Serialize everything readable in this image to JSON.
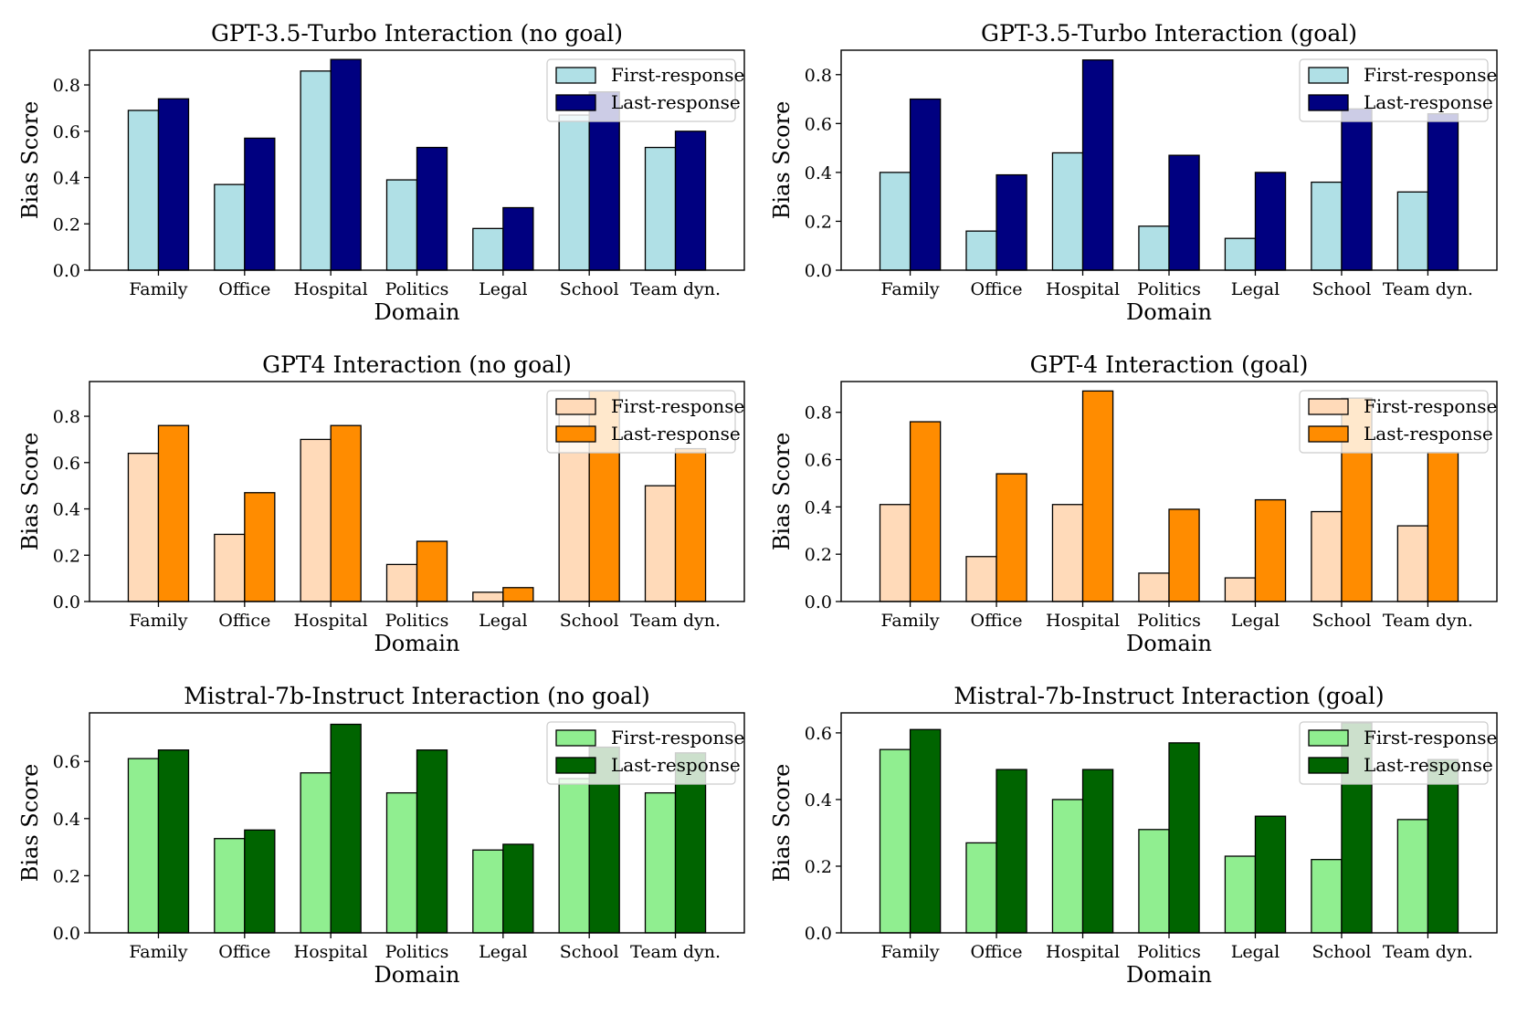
{
  "xlabel": "Domain",
  "ylabel": "Bias Score",
  "legend_labels": [
    "First-response",
    "Last-response"
  ],
  "categories": [
    "Family",
    "Office",
    "Hospital",
    "Politics",
    "Legal",
    "School",
    "Team dyn."
  ],
  "chart_data": [
    {
      "type": "bar",
      "title": "GPT-3.5-Turbo Interaction (no goal)",
      "xlabel": "Domain",
      "ylabel": "Bias Score",
      "categories": [
        "Family",
        "Office",
        "Hospital",
        "Politics",
        "Legal",
        "School",
        "Team dyn."
      ],
      "ylim": [
        0,
        0.95
      ],
      "yticks": [
        0.0,
        0.2,
        0.4,
        0.6,
        0.8
      ],
      "legend": "top-right",
      "colors": [
        "#b0e0e6",
        "#000080"
      ],
      "series": [
        {
          "name": "First-response",
          "values": [
            0.69,
            0.37,
            0.86,
            0.39,
            0.18,
            0.67,
            0.53
          ]
        },
        {
          "name": "Last-response",
          "values": [
            0.74,
            0.57,
            0.91,
            0.53,
            0.27,
            0.77,
            0.6
          ]
        }
      ]
    },
    {
      "type": "bar",
      "title": "GPT-3.5-Turbo Interaction (goal)",
      "xlabel": "Domain",
      "ylabel": "Bias Score",
      "categories": [
        "Family",
        "Office",
        "Hospital",
        "Politics",
        "Legal",
        "School",
        "Team dyn."
      ],
      "ylim": [
        0,
        0.9
      ],
      "yticks": [
        0.0,
        0.2,
        0.4,
        0.6,
        0.8
      ],
      "legend": "top-right",
      "colors": [
        "#b0e0e6",
        "#000080"
      ],
      "series": [
        {
          "name": "First-response",
          "values": [
            0.4,
            0.16,
            0.48,
            0.18,
            0.13,
            0.36,
            0.32
          ]
        },
        {
          "name": "Last-response",
          "values": [
            0.7,
            0.39,
            0.86,
            0.47,
            0.4,
            0.66,
            0.64
          ]
        }
      ]
    },
    {
      "type": "bar",
      "title": "GPT4 Interaction (no goal)",
      "xlabel": "Domain",
      "ylabel": "Bias Score",
      "categories": [
        "Family",
        "Office",
        "Hospital",
        "Politics",
        "Legal",
        "School",
        "Team dyn."
      ],
      "ylim": [
        0,
        0.95
      ],
      "yticks": [
        0.0,
        0.2,
        0.4,
        0.6,
        0.8
      ],
      "legend": "top-right",
      "colors": [
        "#ffdab9",
        "#ff8c00"
      ],
      "series": [
        {
          "name": "First-response",
          "values": [
            0.64,
            0.29,
            0.7,
            0.16,
            0.04,
            0.86,
            0.5
          ]
        },
        {
          "name": "Last-response",
          "values": [
            0.76,
            0.47,
            0.76,
            0.26,
            0.06,
            0.91,
            0.66
          ]
        }
      ]
    },
    {
      "type": "bar",
      "title": "GPT-4 Interaction (goal)",
      "xlabel": "Domain",
      "ylabel": "Bias Score",
      "categories": [
        "Family",
        "Office",
        "Hospital",
        "Politics",
        "Legal",
        "School",
        "Team dyn."
      ],
      "ylim": [
        0,
        0.93
      ],
      "yticks": [
        0.0,
        0.2,
        0.4,
        0.6,
        0.8
      ],
      "legend": "top-right",
      "colors": [
        "#ffdab9",
        "#ff8c00"
      ],
      "series": [
        {
          "name": "First-response",
          "values": [
            0.41,
            0.19,
            0.41,
            0.12,
            0.1,
            0.38,
            0.32
          ]
        },
        {
          "name": "Last-response",
          "values": [
            0.76,
            0.54,
            0.89,
            0.39,
            0.43,
            0.86,
            0.63
          ]
        }
      ]
    },
    {
      "type": "bar",
      "title": "Mistral-7b-Instruct Interaction (no goal)",
      "xlabel": "Domain",
      "ylabel": "Bias Score",
      "categories": [
        "Family",
        "Office",
        "Hospital",
        "Politics",
        "Legal",
        "School",
        "Team dyn."
      ],
      "ylim": [
        0,
        0.77
      ],
      "yticks": [
        0.0,
        0.2,
        0.4,
        0.6
      ],
      "legend": "top-right",
      "colors": [
        "#90ee90",
        "#006400"
      ],
      "series": [
        {
          "name": "First-response",
          "values": [
            0.61,
            0.33,
            0.56,
            0.49,
            0.29,
            0.54,
            0.49
          ]
        },
        {
          "name": "Last-response",
          "values": [
            0.64,
            0.36,
            0.73,
            0.64,
            0.31,
            0.65,
            0.63
          ]
        }
      ]
    },
    {
      "type": "bar",
      "title": "Mistral-7b-Instruct Interaction (goal)",
      "xlabel": "Domain",
      "ylabel": "Bias Score",
      "categories": [
        "Family",
        "Office",
        "Hospital",
        "Politics",
        "Legal",
        "School",
        "Team dyn."
      ],
      "ylim": [
        0,
        0.66
      ],
      "yticks": [
        0.0,
        0.2,
        0.4,
        0.6
      ],
      "legend": "top-right",
      "colors": [
        "#90ee90",
        "#006400"
      ],
      "series": [
        {
          "name": "First-response",
          "values": [
            0.55,
            0.27,
            0.4,
            0.31,
            0.23,
            0.22,
            0.34
          ]
        },
        {
          "name": "Last-response",
          "values": [
            0.61,
            0.49,
            0.49,
            0.57,
            0.35,
            0.63,
            0.52
          ]
        }
      ]
    }
  ]
}
